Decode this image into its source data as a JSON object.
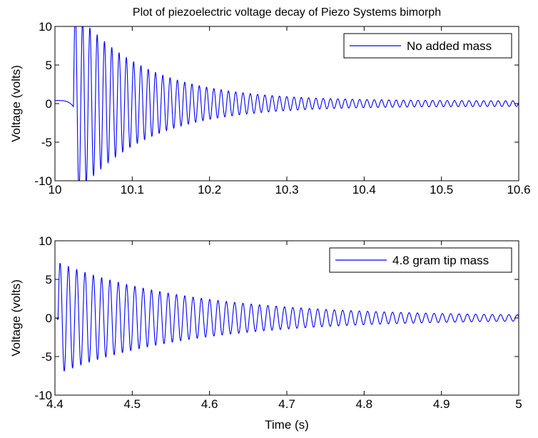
{
  "chart_data": [
    {
      "type": "line",
      "title": "Plot of piezoelectric voltage decay of Piezo Systems bimorph",
      "xlabel": "",
      "ylabel": "Voltage (volts)",
      "xlim": [
        10,
        10.6
      ],
      "ylim": [
        -10,
        10
      ],
      "xticks": [
        "10",
        "10.1",
        "10.2",
        "10.3",
        "10.4",
        "10.5",
        "10.6"
      ],
      "yticks": [
        "10",
        "5",
        "0",
        "-5",
        "-10"
      ],
      "grid": false,
      "legend_position": "top-right",
      "series": [
        {
          "name": "No added mass",
          "color": "#0000ff",
          "model": {
            "t_start": 10.024,
            "t_end": 10.6,
            "frequency_hz": 106,
            "peak_amplitude": 12,
            "decay_time_s": 0.09,
            "floor_amplitude": 0.35,
            "clip": 10,
            "pre_offset": 0.4,
            "pre_dip": -0.4
          }
        }
      ]
    },
    {
      "type": "line",
      "title": "",
      "xlabel": "Time (s)",
      "ylabel": "Voltage (volts)",
      "xlim": [
        4.4,
        5
      ],
      "ylim": [
        -10,
        10
      ],
      "xticks": [
        "4.4",
        "4.5",
        "4.6",
        "4.7",
        "4.8",
        "4.9",
        "5"
      ],
      "yticks": [
        "10",
        "5",
        "0",
        "-5",
        "-10"
      ],
      "grid": false,
      "legend_position": "top-right",
      "series": [
        {
          "name": "4.8 gram tip mass",
          "color": "#0000ff",
          "model": {
            "t_start": 4.404,
            "t_end": 5,
            "frequency_hz": 93,
            "peak_amplitude": 7.0,
            "decay_time_s": 0.17,
            "floor_amplitude": 0.2,
            "clip": 10,
            "pre_offset": 0.0,
            "pre_dip": -0.3
          }
        }
      ]
    }
  ]
}
